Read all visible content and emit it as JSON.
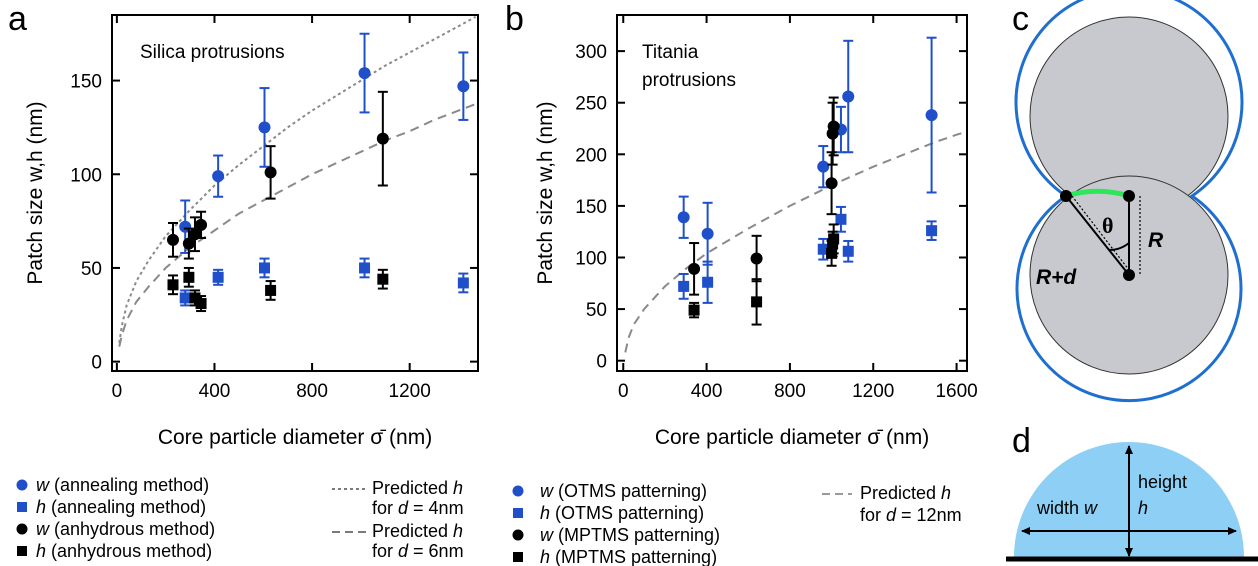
{
  "panels": {
    "a": "a",
    "b": "b",
    "c": "c",
    "d": "d"
  },
  "colors": {
    "blue": "#1f4fc9",
    "black": "#000000",
    "gray": "#7a7a7a",
    "green": "#2ee65a",
    "particle_fill": "#c7c9ce",
    "outline_blue": "#1f6fd0",
    "dome_fill": "#8ed0f5"
  },
  "chart_data": [
    {
      "type": "scatter",
      "panel": "a",
      "annotation": "Silica protrusions",
      "xlabel": "Core particle diameter σ̄ (nm)",
      "ylabel": "Patch size w,h (nm)",
      "xlim": [
        -20,
        1480
      ],
      "ylim": [
        -5,
        185
      ],
      "xticks": [
        0,
        400,
        800,
        1200
      ],
      "yticks": [
        0,
        50,
        100,
        150
      ],
      "series": [
        {
          "name": "w (annealing method)",
          "marker": "circle",
          "color": "blue",
          "points": [
            {
              "x": 280,
              "y": 72,
              "err": 14
            },
            {
              "x": 415,
              "y": 99,
              "err": 11
            },
            {
              "x": 605,
              "y": 125,
              "err": 21
            },
            {
              "x": 1015,
              "y": 154,
              "err": 21
            },
            {
              "x": 1420,
              "y": 147,
              "err": 18
            }
          ]
        },
        {
          "name": "h (annealing method)",
          "marker": "square",
          "color": "blue",
          "points": [
            {
              "x": 280,
              "y": 34,
              "err": 4
            },
            {
              "x": 415,
              "y": 45,
              "err": 4
            },
            {
              "x": 605,
              "y": 50,
              "err": 5
            },
            {
              "x": 1015,
              "y": 50,
              "err": 5
            },
            {
              "x": 1420,
              "y": 42,
              "err": 5
            }
          ]
        },
        {
          "name": "w (anhydrous method)",
          "marker": "circle",
          "color": "black",
          "points": [
            {
              "x": 230,
              "y": 65,
              "err": 9
            },
            {
              "x": 295,
              "y": 63,
              "err": 8
            },
            {
              "x": 320,
              "y": 68,
              "err": 9
            },
            {
              "x": 345,
              "y": 73,
              "err": 7
            },
            {
              "x": 630,
              "y": 101,
              "err": 14
            },
            {
              "x": 1090,
              "y": 119,
              "err": 25
            }
          ]
        },
        {
          "name": "h (anhydrous method)",
          "marker": "square",
          "color": "black",
          "points": [
            {
              "x": 230,
              "y": 41,
              "err": 5
            },
            {
              "x": 295,
              "y": 45,
              "err": 5
            },
            {
              "x": 320,
              "y": 34,
              "err": 4
            },
            {
              "x": 345,
              "y": 31,
              "err": 4
            },
            {
              "x": 630,
              "y": 38,
              "err": 5
            },
            {
              "x": 1090,
              "y": 44,
              "err": 5
            }
          ]
        },
        {
          "name": "Predicted h for d = 4nm",
          "line": "dotted",
          "color": "gray",
          "points": [
            [
              10,
              10
            ],
            [
              20,
              19
            ],
            [
              40,
              30
            ],
            [
              80,
              43
            ],
            [
              130,
              54
            ],
            [
              200,
              67
            ],
            [
              300,
              81
            ],
            [
              400,
              94
            ],
            [
              500,
              105
            ],
            [
              600,
              115
            ],
            [
              700,
              125
            ],
            [
              800,
              134
            ],
            [
              900,
              142
            ],
            [
              1000,
              150
            ],
            [
              1100,
              158
            ],
            [
              1200,
              165
            ],
            [
              1300,
              172
            ],
            [
              1400,
              179
            ],
            [
              1470,
              184
            ]
          ]
        },
        {
          "name": "Predicted h for d = 6nm",
          "line": "dashed",
          "color": "gray",
          "points": [
            [
              10,
              8
            ],
            [
              20,
              14
            ],
            [
              40,
              22
            ],
            [
              80,
              32
            ],
            [
              130,
              40
            ],
            [
              200,
              50
            ],
            [
              300,
              61
            ],
            [
              400,
              70
            ],
            [
              500,
              79
            ],
            [
              600,
              86
            ],
            [
              700,
              93
            ],
            [
              800,
              100
            ],
            [
              900,
              106
            ],
            [
              1000,
              112
            ],
            [
              1100,
              118
            ],
            [
              1200,
              123
            ],
            [
              1300,
              129
            ],
            [
              1400,
              134
            ],
            [
              1480,
              138
            ]
          ]
        }
      ]
    },
    {
      "type": "scatter",
      "panel": "b",
      "annotation": "Titania protrusions",
      "xlabel": "Core particle diameter σ̄ (nm)",
      "ylabel": "Patch size w,h (nm)",
      "xlim": [
        -30,
        1650
      ],
      "ylim": [
        -10,
        335
      ],
      "xticks": [
        0,
        400,
        800,
        1200,
        1600
      ],
      "yticks": [
        0,
        50,
        100,
        150,
        200,
        250,
        300
      ],
      "series": [
        {
          "name": "w (OTMS patterning)",
          "marker": "circle",
          "color": "blue",
          "points": [
            {
              "x": 290,
              "y": 139,
              "err": 20
            },
            {
              "x": 405,
              "y": 123,
              "err": 30
            },
            {
              "x": 960,
              "y": 188,
              "err": 20
            },
            {
              "x": 1045,
              "y": 224,
              "err": 22
            },
            {
              "x": 1080,
              "y": 256,
              "err": 54
            },
            {
              "x": 1480,
              "y": 238,
              "err": 75
            }
          ]
        },
        {
          "name": "h (OTMS patterning)",
          "marker": "square",
          "color": "blue",
          "points": [
            {
              "x": 290,
              "y": 72,
              "err": 12
            },
            {
              "x": 405,
              "y": 76,
              "err": 20
            },
            {
              "x": 960,
              "y": 108,
              "err": 10
            },
            {
              "x": 1045,
              "y": 137,
              "err": 12
            },
            {
              "x": 1080,
              "y": 106,
              "err": 10
            },
            {
              "x": 1480,
              "y": 126,
              "err": 9
            }
          ]
        },
        {
          "name": "w (MPTMS patterning)",
          "marker": "circle",
          "color": "black",
          "points": [
            {
              "x": 340,
              "y": 89,
              "err": 25
            },
            {
              "x": 640,
              "y": 99,
              "err": 22
            },
            {
              "x": 1000,
              "y": 172,
              "err": 30
            },
            {
              "x": 1005,
              "y": 220,
              "err": 30
            },
            {
              "x": 1010,
              "y": 227,
              "err": 28
            }
          ]
        },
        {
          "name": "h (MPTMS patterning)",
          "marker": "square",
          "color": "black",
          "points": [
            {
              "x": 340,
              "y": 49,
              "err": 7
            },
            {
              "x": 640,
              "y": 57,
              "err": 22
            },
            {
              "x": 1000,
              "y": 104,
              "err": 12
            },
            {
              "x": 1005,
              "y": 113,
              "err": 12
            },
            {
              "x": 1010,
              "y": 118,
              "err": 14
            }
          ]
        },
        {
          "name": "Predicted h for d = 12nm",
          "line": "dashed",
          "color": "gray",
          "points": [
            [
              10,
              8
            ],
            [
              25,
              22
            ],
            [
              50,
              35
            ],
            [
              100,
              50
            ],
            [
              200,
              72
            ],
            [
              300,
              89
            ],
            [
              400,
              104
            ],
            [
              500,
              116
            ],
            [
              600,
              128
            ],
            [
              700,
              139
            ],
            [
              800,
              150
            ],
            [
              900,
              160
            ],
            [
              1000,
              170
            ],
            [
              1100,
              179
            ],
            [
              1200,
              188
            ],
            [
              1300,
              196
            ],
            [
              1400,
              204
            ],
            [
              1500,
              212
            ],
            [
              1600,
              219
            ],
            [
              1650,
              222
            ]
          ]
        }
      ]
    }
  ],
  "legend_a": {
    "items": [
      {
        "sym": "circle",
        "color": "blue",
        "var": "w",
        "text": "(annealing method)"
      },
      {
        "sym": "square",
        "color": "blue",
        "var": "h",
        "text": "(annealing method)"
      },
      {
        "sym": "circle",
        "color": "black",
        "var": "w",
        "text": "(anhydrous method)"
      },
      {
        "sym": "square",
        "color": "black",
        "var": "h",
        "text": "(anhydrous method)"
      }
    ],
    "pred1_line1": "Predicted ",
    "pred1_var": "h",
    "pred1_line2_pre": "for ",
    "pred1_line2_var": "d",
    "pred1_line2_post": " = 4nm",
    "pred2_line1": "Predicted ",
    "pred2_var": "h",
    "pred2_line2_pre": "for ",
    "pred2_line2_var": "d",
    "pred2_line2_post": " = 6nm"
  },
  "legend_b": {
    "items": [
      {
        "sym": "circle",
        "color": "blue",
        "var": "w",
        "text": "(OTMS patterning)"
      },
      {
        "sym": "square",
        "color": "blue",
        "var": "h",
        "text": "(OTMS patterning)"
      },
      {
        "sym": "circle",
        "color": "black",
        "var": "w",
        "text": "(MPTMS patterning)"
      },
      {
        "sym": "square",
        "color": "black",
        "var": "h",
        "text": "(MPTMS patterning)"
      }
    ],
    "pred_line1": "Predicted ",
    "pred_var": "h",
    "pred_line2_pre": "for ",
    "pred_line2_var": "d",
    "pred_line2_post": " = 12nm"
  },
  "diagram_c": {
    "theta": "θ",
    "R": "R",
    "R_plus_d": "R+d"
  },
  "diagram_d": {
    "width_label": "width ",
    "width_var": "w",
    "height_label": "height",
    "height_var": "h"
  }
}
